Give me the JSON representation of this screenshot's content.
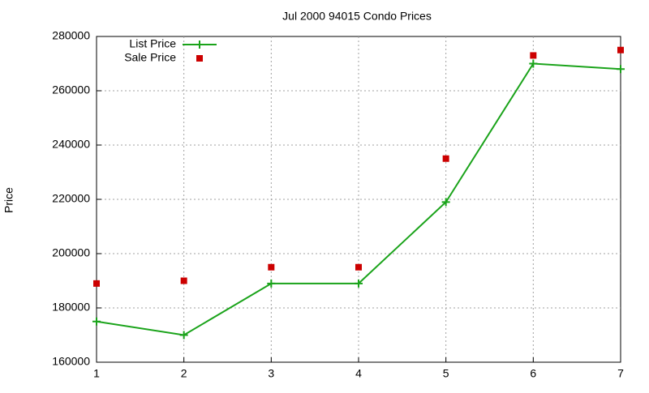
{
  "chart_data": {
    "type": "line",
    "title": "Jul 2000 94015 Condo Prices",
    "y_label": "Price",
    "x": [
      1,
      2,
      3,
      4,
      5,
      6,
      7
    ],
    "series": [
      {
        "name": "List Price",
        "color": "#1aa31a",
        "style": "linespoints",
        "values": [
          175000,
          170000,
          189000,
          189000,
          219000,
          270000,
          268000
        ]
      },
      {
        "name": "Sale Price",
        "color": "#cc0000",
        "style": "points",
        "values": [
          189000,
          190000,
          195000,
          195000,
          235000,
          273000,
          275000
        ]
      }
    ],
    "xlim": [
      1,
      7
    ],
    "xticks": [
      1,
      2,
      3,
      4,
      5,
      6,
      7
    ],
    "ylim": [
      160000,
      280000
    ],
    "yticks": [
      160000,
      180000,
      200000,
      220000,
      240000,
      260000,
      280000
    ],
    "grid": true,
    "legend": "top-left"
  }
}
